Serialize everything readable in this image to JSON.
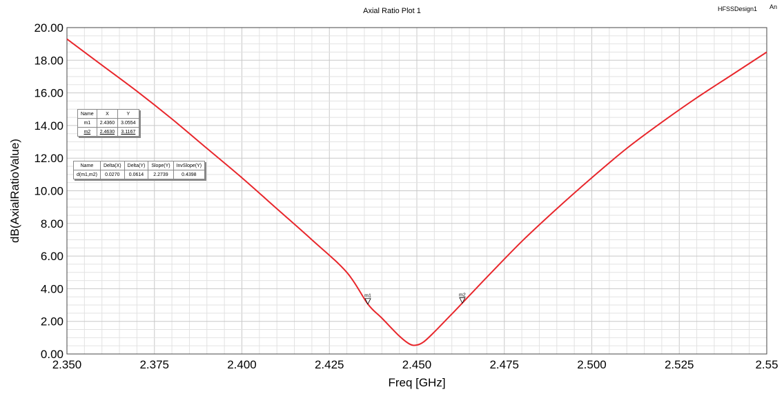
{
  "header": {
    "title": "Axial Ratio Plot 1",
    "design_name": "HFSSDesign1",
    "design_extra": "An"
  },
  "chart_data": {
    "type": "line",
    "title": "Axial Ratio Plot 1",
    "xlabel": "Freq [GHz]",
    "ylabel": "dB(AxialRatioValue)",
    "xlim": [
      2.35,
      2.55
    ],
    "ylim": [
      0,
      20
    ],
    "x_ticks": [
      "2.350",
      "2.375",
      "2.400",
      "2.425",
      "2.450",
      "2.475",
      "2.500",
      "2.525",
      "2.55"
    ],
    "y_ticks": [
      "0.00",
      "2.00",
      "4.00",
      "6.00",
      "8.00",
      "10.00",
      "12.00",
      "14.00",
      "16.00",
      "18.00",
      "20.00"
    ],
    "grid": true,
    "line_color": "#e8262b",
    "series": [
      {
        "x": [
          2.35,
          2.36,
          2.37,
          2.38,
          2.39,
          2.4,
          2.41,
          2.42,
          2.43,
          2.436,
          2.44,
          2.445,
          2.448,
          2.45,
          2.452,
          2.455,
          2.46,
          2.463,
          2.47,
          2.48,
          2.49,
          2.5,
          2.51,
          2.52,
          2.53,
          2.54,
          2.55
        ],
        "y": [
          19.3,
          17.7,
          16.1,
          14.4,
          12.6,
          10.8,
          8.9,
          7.0,
          5.0,
          3.06,
          2.2,
          1.1,
          0.6,
          0.55,
          0.75,
          1.35,
          2.45,
          3.12,
          4.7,
          6.9,
          8.9,
          10.8,
          12.6,
          14.2,
          15.7,
          17.1,
          18.5
        ]
      }
    ],
    "markers": [
      {
        "label": "m1",
        "x": 2.436,
        "y": 3.0554
      },
      {
        "label": "m2",
        "x": 2.463,
        "y": 3.1167
      }
    ]
  },
  "marker_table": {
    "headers": [
      "Name",
      "X",
      "Y"
    ],
    "rows": [
      [
        "m1",
        "2.4360",
        "3.0554"
      ],
      [
        "m2",
        "2.4630",
        "3.1167"
      ]
    ]
  },
  "delta_table": {
    "headers": [
      "Name",
      "Delta(X)",
      "Delta(Y)",
      "Slope(Y)",
      "InvSlope(Y)"
    ],
    "rows": [
      [
        "d(m1,m2)",
        "0.0270",
        "0.0614",
        "2.2739",
        "0.4398"
      ]
    ]
  }
}
